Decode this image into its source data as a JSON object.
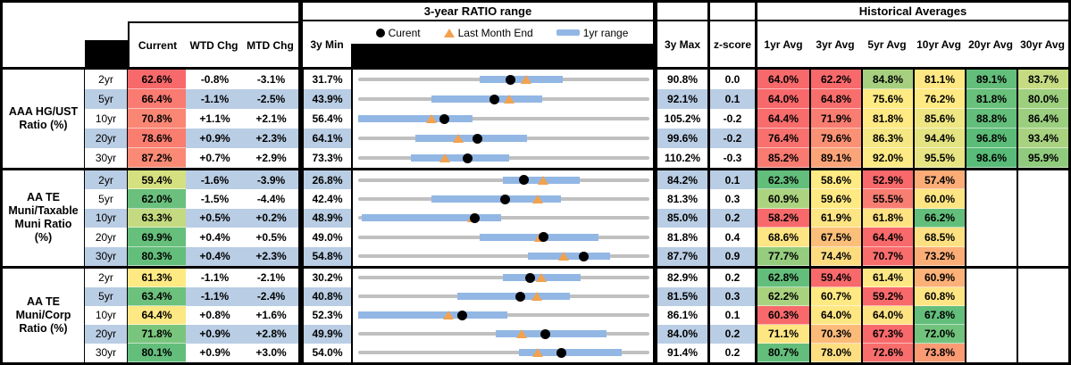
{
  "headers": {
    "chart_title": "3-year RATIO range",
    "historical_title": "Historical Averages",
    "current": "Current",
    "wtd": "WTD Chg",
    "mtd": "MTD Chg",
    "min": "3y Min",
    "max": "3y Max",
    "z": "z-score",
    "avg_cols": [
      "1yr Avg",
      "3yr Avg",
      "5yr Avg",
      "10yr Avg",
      "20yr Avg",
      "30yr Avg"
    ]
  },
  "legend": {
    "current": "Curent",
    "last_month": "Last Month End",
    "range": "1yr range"
  },
  "colors": {
    "stripe": "#B9CDE4",
    "bar_1yr": "#92B7E4",
    "range_line": "#C0C0C0",
    "triangle": "#F2A24E",
    "dot": "#000000",
    "scale_red": "#F8696B",
    "scale_yellow": "#FFEB84",
    "scale_green": "#63BE7B"
  },
  "chart_data": {
    "type": "range",
    "unit": "%",
    "note": "Each strip: gray line = 3y min..max range, blue bar = 1yr range, black dot = current, orange triangle = last month end (current - MTD chg)",
    "sections": [
      {
        "label": "AAA HG/UST\nRatio (%)",
        "rows": [
          {
            "tenor": "2yr",
            "current": "62.6%",
            "current_val": 62.6,
            "current_color": "#F8696B",
            "wtd": "-0.8%",
            "mtd": "-3.1%",
            "min_3y": "31.7%",
            "min_val": 31.7,
            "max_3y": "90.8%",
            "max_val": 90.8,
            "z_score": "0.0",
            "range_1yr": [
              56.3,
              73.2
            ],
            "last_month_end": 65.7,
            "avgs": [
              [
                "64.0%",
                "#F8696B"
              ],
              [
                "62.2%",
                "#F8696B"
              ],
              [
                "84.8%",
                "#A6D07F"
              ],
              [
                "81.1%",
                "#FFE883"
              ],
              [
                "89.1%",
                "#63BE7B"
              ],
              [
                "83.7%",
                "#C6DB81"
              ]
            ]
          },
          {
            "tenor": "5yr",
            "current": "66.4%",
            "current_val": 66.4,
            "current_color": "#F97B71",
            "wtd": "-1.1%",
            "mtd": "-2.5%",
            "min_3y": "43.9%",
            "min_val": 43.9,
            "max_3y": "92.1%",
            "max_val": 92.1,
            "z_score": "0.1",
            "range_1yr": [
              56.0,
              74.3
            ],
            "last_month_end": 68.9,
            "avgs": [
              [
                "64.0%",
                "#F8696B"
              ],
              [
                "64.8%",
                "#F86E6D"
              ],
              [
                "75.6%",
                "#FFEB84"
              ],
              [
                "76.2%",
                "#FFE983"
              ],
              [
                "81.8%",
                "#68C07B"
              ],
              [
                "80.0%",
                "#9ECF7F"
              ]
            ]
          },
          {
            "tenor": "10yr",
            "current": "70.8%",
            "current_val": 70.8,
            "current_color": "#FA8674",
            "wtd": "+1.1%",
            "mtd": "+2.1%",
            "min_3y": "56.4%",
            "min_val": 56.4,
            "max_3y": "105.2%",
            "max_val": 105.2,
            "z_score": "-0.2",
            "range_1yr": [
              56.4,
              75.5
            ],
            "last_month_end": 68.7,
            "avgs": [
              [
                "64.4%",
                "#F86C6C"
              ],
              [
                "71.9%",
                "#F97D71"
              ],
              [
                "81.8%",
                "#FEE983"
              ],
              [
                "85.6%",
                "#EDE683"
              ],
              [
                "88.8%",
                "#64BE7B"
              ],
              [
                "86.4%",
                "#9BCE7E"
              ]
            ]
          },
          {
            "tenor": "20yr",
            "current": "78.6%",
            "current_val": 78.6,
            "current_color": "#F97E70",
            "wtd": "+0.9%",
            "mtd": "+2.3%",
            "min_3y": "64.1%",
            "min_val": 64.1,
            "max_3y": "99.6%",
            "max_val": 99.6,
            "z_score": "-0.2",
            "range_1yr": [
              71.1,
              84.7
            ],
            "last_month_end": 76.3,
            "avgs": [
              [
                "76.4%",
                "#F8716E"
              ],
              [
                "79.6%",
                "#FA9174"
              ],
              [
                "86.3%",
                "#F5E783"
              ],
              [
                "94.4%",
                "#E3E382"
              ],
              [
                "96.8%",
                "#5BBC78"
              ],
              [
                "93.4%",
                "#A8D180"
              ]
            ]
          },
          {
            "tenor": "30yr",
            "current": "87.2%",
            "current_val": 87.2,
            "current_color": "#FA8A75",
            "wtd": "+0.7%",
            "mtd": "+2.9%",
            "min_3y": "73.3%",
            "min_val": 73.3,
            "max_3y": "110.2%",
            "max_val": 110.2,
            "z_score": "-0.3",
            "range_1yr": [
              80.0,
              92.4
            ],
            "last_month_end": 84.3,
            "avgs": [
              [
                "85.2%",
                "#F97A70"
              ],
              [
                "89.1%",
                "#FBA478"
              ],
              [
                "92.0%",
                "#FCEA84"
              ],
              [
                "95.5%",
                "#E6E483"
              ],
              [
                "98.6%",
                "#58BB77"
              ],
              [
                "95.9%",
                "#90CB7D"
              ]
            ]
          }
        ]
      },
      {
        "label": "AA TE\nMuni/Taxable\nMuni Ratio\n(%)",
        "rows": [
          {
            "tenor": "2yr",
            "current": "59.4%",
            "current_val": 59.4,
            "current_color": "#D5E081",
            "wtd": "-1.6%",
            "mtd": "-3.9%",
            "min_3y": "26.8%",
            "min_val": 26.8,
            "max_3y": "84.2%",
            "max_val": 84.2,
            "z_score": "0.1",
            "range_1yr": [
              55.3,
              70.4
            ],
            "last_month_end": 63.3,
            "avgs": [
              [
                "62.3%",
                "#63BE7B"
              ],
              [
                "58.6%",
                "#FFEB84"
              ],
              [
                "52.9%",
                "#F8696B"
              ],
              [
                "57.4%",
                "#FBAC77"
              ],
              [
                "",
                ""
              ],
              [
                "",
                ""
              ]
            ]
          },
          {
            "tenor": "5yr",
            "current": "62.0%",
            "current_val": 62.0,
            "current_color": "#6AC07C",
            "wtd": "-1.5%",
            "mtd": "-4.4%",
            "min_3y": "42.4%",
            "min_val": 42.4,
            "max_3y": "81.3%",
            "max_val": 81.3,
            "z_score": "0.3",
            "range_1yr": [
              52.2,
              69.5
            ],
            "last_month_end": 66.4,
            "avgs": [
              [
                "60.9%",
                "#ACD37F"
              ],
              [
                "59.6%",
                "#FFE983"
              ],
              [
                "55.5%",
                "#F87E72"
              ],
              [
                "60.0%",
                "#FEE583"
              ],
              [
                "",
                ""
              ],
              [
                "",
                ""
              ]
            ]
          },
          {
            "tenor": "10yr",
            "current": "63.3%",
            "current_val": 63.3,
            "current_color": "#C4DA80",
            "wtd": "+0.5%",
            "mtd": "+0.2%",
            "min_3y": "48.9%",
            "min_val": 48.9,
            "max_3y": "85.0%",
            "max_val": 85.0,
            "z_score": "0.2",
            "range_1yr": [
              49.3,
              66.6
            ],
            "last_month_end": 63.1,
            "avgs": [
              [
                "58.2%",
                "#F8696B"
              ],
              [
                "61.9%",
                "#FEE583"
              ],
              [
                "61.8%",
                "#FEE382"
              ],
              [
                "66.2%",
                "#63BE7B"
              ],
              [
                "",
                ""
              ],
              [
                "",
                ""
              ]
            ]
          },
          {
            "tenor": "20yr",
            "current": "69.9%",
            "current_val": 69.9,
            "current_color": "#66BF7B",
            "wtd": "+0.4%",
            "mtd": "+0.5%",
            "min_3y": "49.0%",
            "min_val": 49.0,
            "max_3y": "81.8%",
            "max_val": 81.8,
            "z_score": "0.4",
            "range_1yr": [
              62.7,
              76.1
            ],
            "last_month_end": 69.4,
            "avgs": [
              [
                "68.6%",
                "#FEE583"
              ],
              [
                "67.5%",
                "#FBBF7A"
              ],
              [
                "64.4%",
                "#F8696B"
              ],
              [
                "68.5%",
                "#FDE082"
              ],
              [
                "",
                ""
              ],
              [
                "",
                ""
              ]
            ]
          },
          {
            "tenor": "30yr",
            "current": "80.3%",
            "current_val": 80.3,
            "current_color": "#63BE7B",
            "wtd": "+0.4%",
            "mtd": "+2.3%",
            "min_3y": "54.8%",
            "min_val": 54.8,
            "max_3y": "87.7%",
            "max_val": 87.7,
            "z_score": "0.9",
            "range_1yr": [
              74.0,
              83.3
            ],
            "last_month_end": 78.0,
            "avgs": [
              [
                "77.7%",
                "#95CC7E"
              ],
              [
                "74.4%",
                "#FDDC80"
              ],
              [
                "70.7%",
                "#F86E6D"
              ],
              [
                "73.2%",
                "#FBAD77"
              ],
              [
                "",
                ""
              ],
              [
                "",
                ""
              ]
            ]
          }
        ]
      },
      {
        "label": "AA TE\nMuni/Corp\nRatio (%)",
        "rows": [
          {
            "tenor": "2yr",
            "current": "61.3%",
            "current_val": 61.3,
            "current_color": "#FFE983",
            "wtd": "-1.1%",
            "mtd": "-2.1%",
            "min_3y": "30.2%",
            "min_val": 30.2,
            "max_3y": "82.9%",
            "max_val": 82.9,
            "z_score": "0.2",
            "range_1yr": [
              56.4,
              70.5
            ],
            "last_month_end": 63.4,
            "avgs": [
              [
                "62.8%",
                "#63BE7B"
              ],
              [
                "59.4%",
                "#F8696B"
              ],
              [
                "61.4%",
                "#FEE883"
              ],
              [
                "60.9%",
                "#FBB178"
              ],
              [
                "",
                ""
              ],
              [
                "",
                ""
              ]
            ]
          },
          {
            "tenor": "5yr",
            "current": "63.4%",
            "current_val": 63.4,
            "current_color": "#6CC17C",
            "wtd": "-1.1%",
            "mtd": "-2.4%",
            "min_3y": "40.8%",
            "min_val": 40.8,
            "max_3y": "81.5%",
            "max_val": 81.5,
            "z_score": "0.3",
            "range_1yr": [
              54.6,
              70.4
            ],
            "last_month_end": 65.8,
            "avgs": [
              [
                "62.2%",
                "#A9D27F"
              ],
              [
                "60.7%",
                "#FFE983"
              ],
              [
                "59.2%",
                "#F8696B"
              ],
              [
                "60.8%",
                "#FEE583"
              ],
              [
                "",
                ""
              ],
              [
                "",
                ""
              ]
            ]
          },
          {
            "tenor": "10yr",
            "current": "64.4%",
            "current_val": 64.4,
            "current_color": "#FEE883",
            "wtd": "+0.8%",
            "mtd": "+1.6%",
            "min_3y": "52.3%",
            "min_val": 52.3,
            "max_3y": "86.1%",
            "max_val": 86.1,
            "z_score": "0.1",
            "range_1yr": [
              52.3,
              69.6
            ],
            "last_month_end": 62.8,
            "avgs": [
              [
                "60.3%",
                "#F8696B"
              ],
              [
                "64.0%",
                "#FEE783"
              ],
              [
                "64.0%",
                "#FEE382"
              ],
              [
                "67.8%",
                "#63BE7B"
              ],
              [
                "",
                ""
              ],
              [
                "",
                ""
              ]
            ]
          },
          {
            "tenor": "20yr",
            "current": "71.8%",
            "current_val": 71.8,
            "current_color": "#7AC57D",
            "wtd": "+0.9%",
            "mtd": "+2.8%",
            "min_3y": "49.9%",
            "min_val": 49.9,
            "max_3y": "84.0%",
            "max_val": 84.0,
            "z_score": "0.2",
            "range_1yr": [
              66.0,
              79.0
            ],
            "last_month_end": 69.0,
            "avgs": [
              [
                "71.1%",
                "#FEE683"
              ],
              [
                "70.3%",
                "#FCBA79"
              ],
              [
                "67.3%",
                "#F8696B"
              ],
              [
                "72.0%",
                "#70C27C"
              ],
              [
                "",
                ""
              ],
              [
                "",
                ""
              ]
            ]
          },
          {
            "tenor": "30yr",
            "current": "80.1%",
            "current_val": 80.1,
            "current_color": "#63BE7B",
            "wtd": "+0.9%",
            "mtd": "+3.0%",
            "min_3y": "54.0%",
            "min_val": 54.0,
            "max_3y": "91.4%",
            "max_val": 91.4,
            "z_score": "0.2",
            "range_1yr": [
              74.6,
              87.8
            ],
            "last_month_end": 77.1,
            "avgs": [
              [
                "80.7%",
                "#63BE7B"
              ],
              [
                "78.0%",
                "#FDDE81"
              ],
              [
                "72.6%",
                "#F86E6D"
              ],
              [
                "73.8%",
                "#FA9B74"
              ],
              [
                "",
                ""
              ],
              [
                "",
                ""
              ]
            ]
          }
        ]
      }
    ]
  }
}
